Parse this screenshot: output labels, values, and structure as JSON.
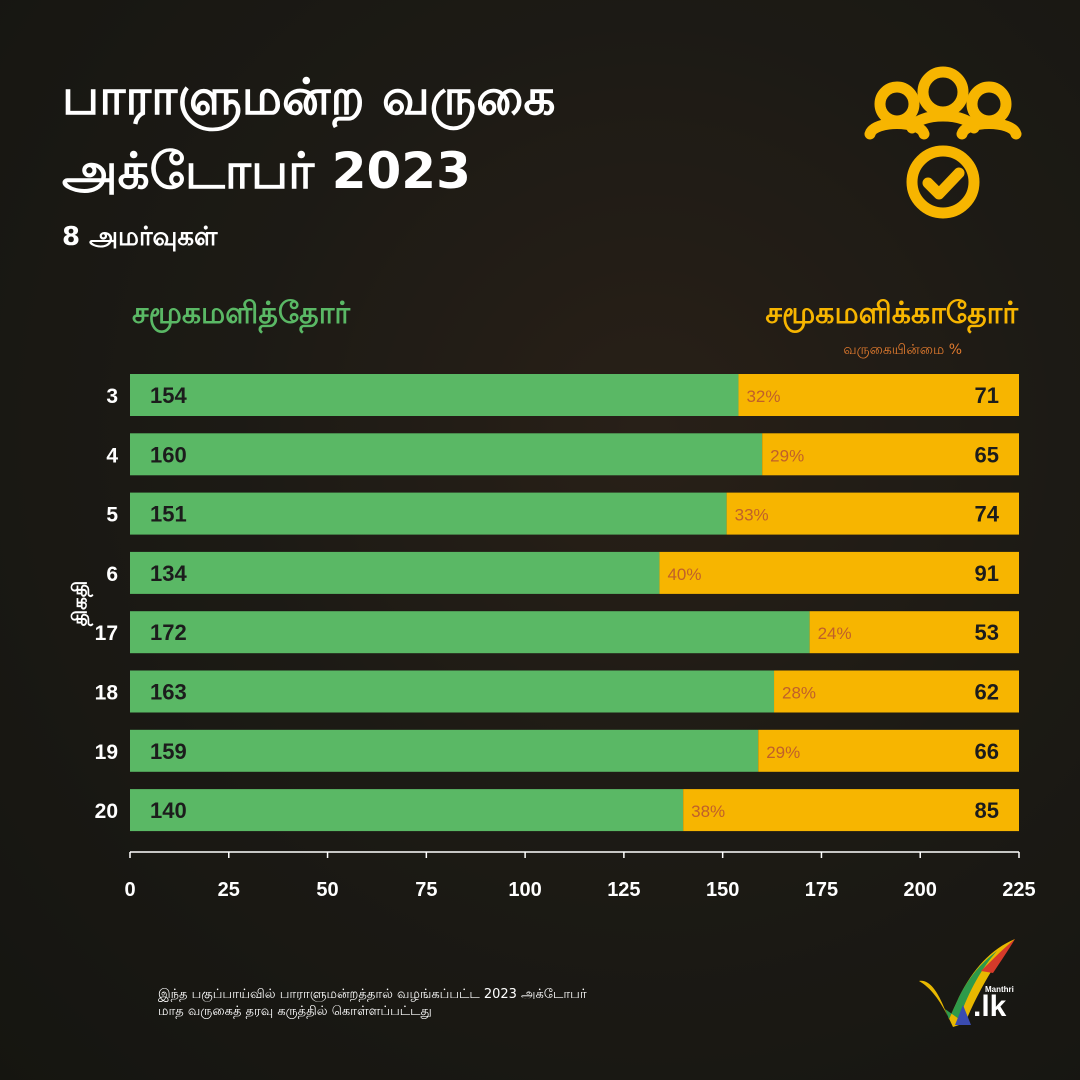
{
  "title_line1": "பாராளுமன்ற வருகை",
  "title_line2": "அக்டோபர் 2023",
  "subtitle": "8 அமர்வுகள்",
  "legend": {
    "present": "சமூகமளித்தோர்",
    "absent": "சமூகமளிக்காதோர்",
    "absent_sub": "வருகையின்மை %"
  },
  "yaxis_label": "திகதி",
  "footnote_line1": "இந்த பகுப்பாய்வில் பாராளுமன்றத்தால் வழங்கப்பட்ட 2023 அக்டோபர்",
  "footnote_line2": "மாத வருகைத் தரவு கருத்தில் கொள்ளப்பட்டது",
  "logo": {
    "small": "Manthri",
    "main": ".lk"
  },
  "colors": {
    "present": "#5ab865",
    "absent": "#f7b500",
    "percent_text": "#c0602a",
    "icon": "#f7b500"
  },
  "chart_data": {
    "type": "bar",
    "orientation": "horizontal",
    "stacked": true,
    "categories": [
      "3",
      "4",
      "5",
      "6",
      "17",
      "18",
      "19",
      "20"
    ],
    "series": [
      {
        "name": "சமூகமளித்தோர்",
        "values": [
          154,
          160,
          151,
          134,
          172,
          163,
          159,
          140
        ]
      },
      {
        "name": "சமூகமளிக்காதோர்",
        "values": [
          71,
          65,
          74,
          91,
          53,
          62,
          66,
          85
        ]
      }
    ],
    "absence_percent": [
      "32%",
      "29%",
      "33%",
      "40%",
      "24%",
      "28%",
      "29%",
      "38%"
    ],
    "xlim": [
      0,
      225
    ],
    "xticks": [
      "0",
      "25",
      "50",
      "75",
      "100",
      "125",
      "150",
      "175",
      "200",
      "225"
    ],
    "ylabel": "திகதி"
  }
}
